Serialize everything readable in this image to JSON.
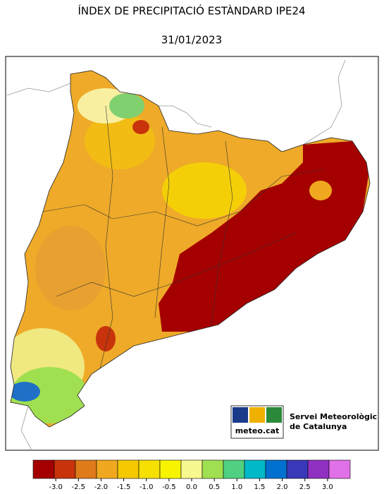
{
  "header": {
    "title": "ÍNDEX DE PRECIPITACIÓ ESTÀNDARD IPE24",
    "date": "31/01/2023"
  },
  "colorbar": {
    "range": [
      -3.5,
      3.5
    ],
    "colors": [
      "#a50000",
      "#c8330c",
      "#e07b1a",
      "#f0a820",
      "#f5c800",
      "#f5e000",
      "#f8f400",
      "#f8f890",
      "#a0e050",
      "#50d080",
      "#00b8c8",
      "#0070d0",
      "#3838b8",
      "#9030c0",
      "#e070e8"
    ],
    "ticks": [
      {
        "value": -3,
        "label": "-3.0"
      },
      {
        "value": -2.5,
        "label": "-2.5"
      },
      {
        "value": -2,
        "label": "-2.0"
      },
      {
        "value": -1.5,
        "label": "-1.5"
      },
      {
        "value": -1,
        "label": "-1.0"
      },
      {
        "value": -0.5,
        "label": "-0.5"
      },
      {
        "value": 0,
        "label": "0.0"
      },
      {
        "value": 0.5,
        "label": "0.5"
      },
      {
        "value": 1,
        "label": "1.0"
      },
      {
        "value": 1.5,
        "label": "1.5"
      },
      {
        "value": 2,
        "label": "2.0"
      },
      {
        "value": 2.5,
        "label": "2.5"
      },
      {
        "value": 3,
        "label": "3.0"
      }
    ]
  },
  "logo": {
    "brand": "meteo.cat",
    "line1": "Servei Meteorològic",
    "line2": "de Catalunya"
  }
}
